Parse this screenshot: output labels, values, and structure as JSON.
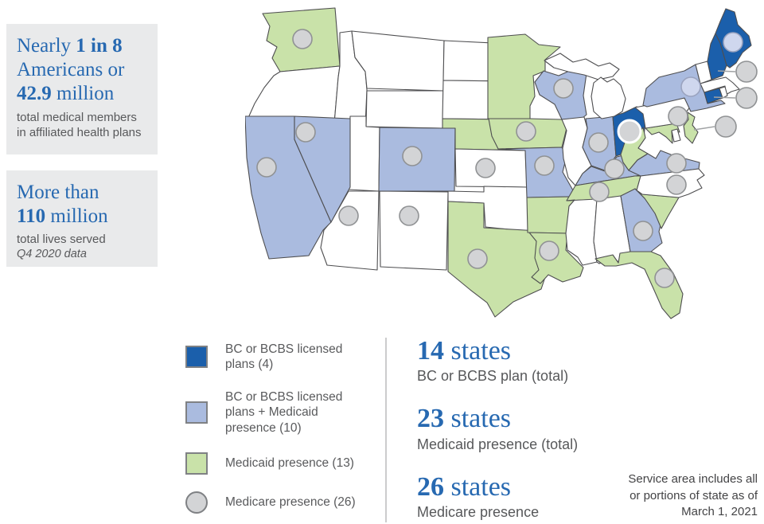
{
  "box1": {
    "l1_normal": "Nearly ",
    "l1_bold": "1 in 8",
    "l2": "Americans or",
    "l3_bold": "42.9",
    "l3_normal": " million",
    "sub": "total medical members in affiliated health plans"
  },
  "box2": {
    "l1": "More than",
    "l2_bold": "110",
    "l2_normal": " million",
    "sub": "total lives served",
    "note": "Q4 2020 data"
  },
  "legend": {
    "items": [
      {
        "label": "BC or BCBS licensed plans (4)",
        "color": "#1b5fab",
        "shape": "square"
      },
      {
        "label": "BC or BCBS licensed plans + Medicaid presence (10)",
        "color": "#aabbdf",
        "shape": "square"
      },
      {
        "label": "Medicaid presence (13)",
        "color": "#c9e2a9",
        "shape": "square"
      },
      {
        "label": "Medicare presence (26)",
        "color": "#d3d4d6",
        "shape": "circle"
      }
    ]
  },
  "stats": [
    {
      "value": "14",
      "unit": " states",
      "desc": "BC or BCBS plan (total)"
    },
    {
      "value": "23",
      "unit": " states",
      "desc": "Medicaid presence (total)"
    },
    {
      "value": "26",
      "unit": " states",
      "desc": "Medicare presence"
    }
  ],
  "footnote": {
    "line1": "Service area includes all",
    "line2": "or portions of state as of",
    "line3": "March 1, 2021"
  },
  "map": {
    "colors": {
      "bcbs_only": "#1b5fab",
      "bcbs_medicaid": "#aabbdf",
      "medicaid": "#c9e2a9",
      "none": "#ffffff",
      "border": "#4e4e50",
      "circle_fill": "#d3d4d6",
      "circle_stroke": "#909294",
      "circle_tinted_fill": "#cfd7ee",
      "circle_tinted_stroke": "#9aa3bf",
      "leader_line": "#a0a2a4"
    },
    "bcbs_only_states": [
      "ME",
      "NH",
      "CT",
      "OH"
    ],
    "bcbs_medicaid_states": [
      "CA",
      "NV",
      "CO",
      "MO",
      "WI",
      "IN",
      "KY",
      "GA",
      "NY",
      "VA"
    ],
    "medicaid_states": [
      "WA",
      "MN",
      "IA",
      "NE",
      "TX",
      "LA",
      "AR",
      "TN",
      "WV",
      "MD",
      "NJ",
      "SC",
      "FL"
    ],
    "medicare_circle_states": [
      "WA",
      "CA",
      "NV",
      "AZ",
      "NM",
      "CO",
      "KS",
      "TX",
      "IA",
      "MO",
      "LA",
      "WI",
      "IN",
      "OH",
      "KY",
      "TN",
      "GA",
      "FL",
      "VA",
      "NC",
      "PA",
      "NY",
      "NJ",
      "CT",
      "NH",
      "ME"
    ],
    "offshore_circle_states": [
      "NH",
      "CT",
      "NJ"
    ],
    "tinted_circle_states": [
      "ME",
      "NY"
    ],
    "ringed_circle_states": [
      "OH"
    ]
  }
}
